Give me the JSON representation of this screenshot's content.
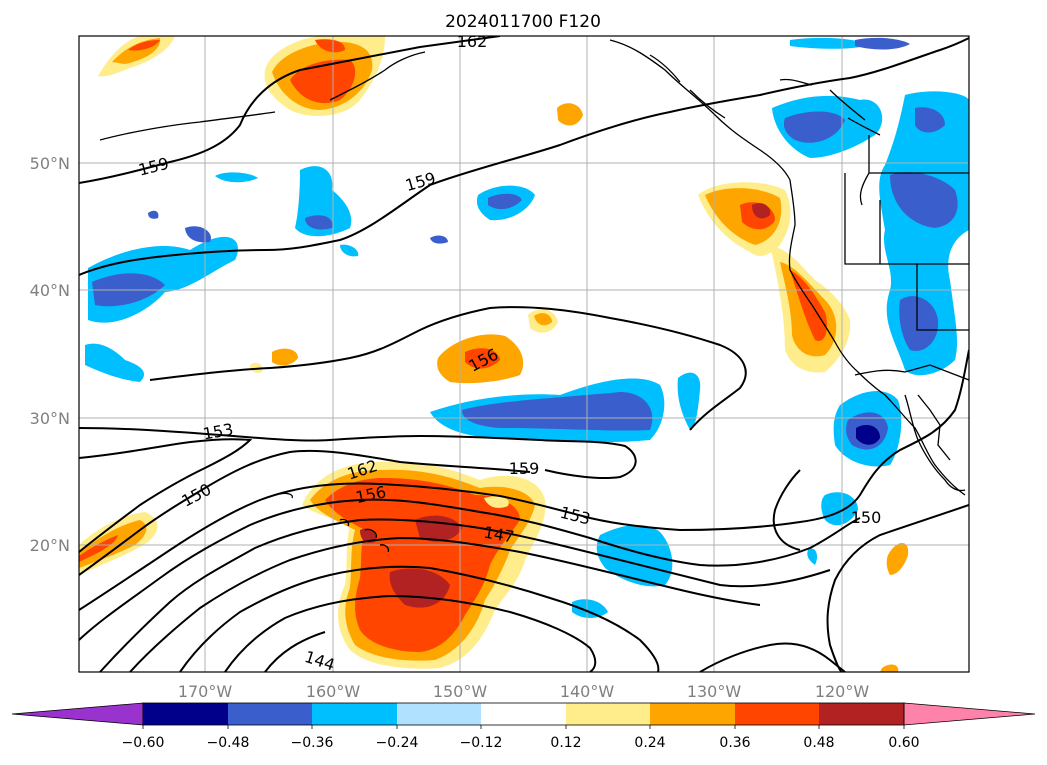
{
  "title": "2024011700 F120",
  "lat_labels": [
    "50°N",
    "40°N",
    "30°N",
    "20°N"
  ],
  "lon_labels": [
    "170°W",
    "160°W",
    "150°W",
    "140°W",
    "130°W",
    "120°W"
  ],
  "contour_labels": [
    "162",
    "159",
    "159",
    "156",
    "153",
    "150",
    "162",
    "156",
    "159",
    "153",
    "147",
    "150",
    "144"
  ],
  "colorbar": {
    "ticks": [
      "−0.60",
      "−0.48",
      "−0.36",
      "−0.24",
      "−0.12",
      "0.12",
      "0.24",
      "0.36",
      "0.48",
      "0.60"
    ],
    "colors": [
      "#9a32cd",
      "#00008b",
      "#3a5fcd",
      "#00bfff",
      "#b0e2ff",
      "#ffffff",
      "#ffec8b",
      "#ffa500",
      "#ff4500",
      "#b22222",
      "#ff82ab"
    ]
  }
}
